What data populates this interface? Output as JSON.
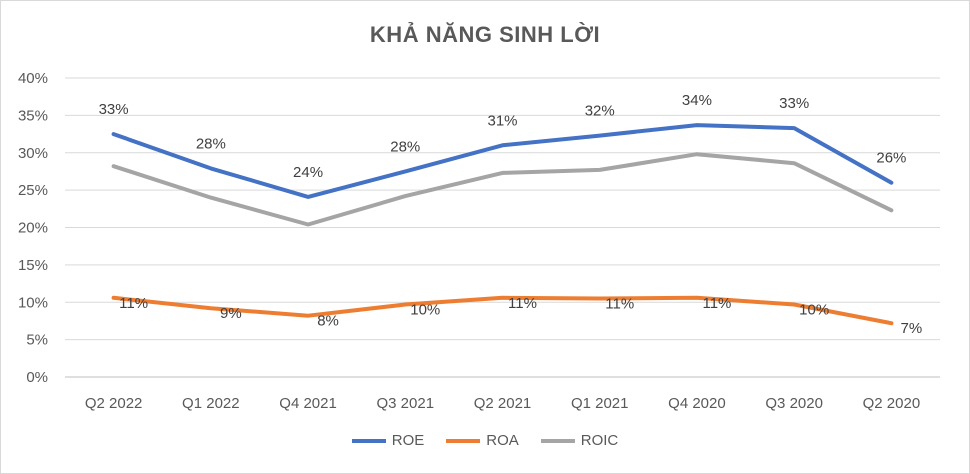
{
  "chart_data": {
    "type": "line",
    "title": "KHẢ NĂNG SINH LỜI",
    "xlabel": "",
    "ylabel": "",
    "ylim": [
      0,
      40
    ],
    "y_ticks": [
      "0%",
      "5%",
      "10%",
      "15%",
      "20%",
      "25%",
      "30%",
      "35%",
      "40%"
    ],
    "categories": [
      "Q2 2022",
      "Q1 2022",
      "Q4 2021",
      "Q3 2021",
      "Q2 2021",
      "Q1 2021",
      "Q4 2020",
      "Q3 2020",
      "Q2 2020"
    ],
    "grid": true,
    "legend_position": "bottom",
    "series": [
      {
        "name": "ROE",
        "color": "#4472C4",
        "values": [
          32.5,
          27.9,
          24.1,
          27.5,
          31.0,
          32.3,
          33.7,
          33.3,
          26.0
        ],
        "labels": [
          "33%",
          "28%",
          "24%",
          "28%",
          "31%",
          "32%",
          "34%",
          "33%",
          "26%"
        ]
      },
      {
        "name": "ROA",
        "color": "#ED7D31",
        "values": [
          10.6,
          9.2,
          8.2,
          9.7,
          10.6,
          10.5,
          10.6,
          9.7,
          7.2
        ],
        "labels": [
          "11%",
          "9%",
          "8%",
          "10%",
          "11%",
          "11%",
          "11%",
          "10%",
          "7%"
        ]
      },
      {
        "name": "ROIC",
        "color": "#A5A5A5",
        "values": [
          28.2,
          24.0,
          20.4,
          24.2,
          27.3,
          27.7,
          29.8,
          28.6,
          22.3
        ],
        "labels": []
      }
    ]
  }
}
